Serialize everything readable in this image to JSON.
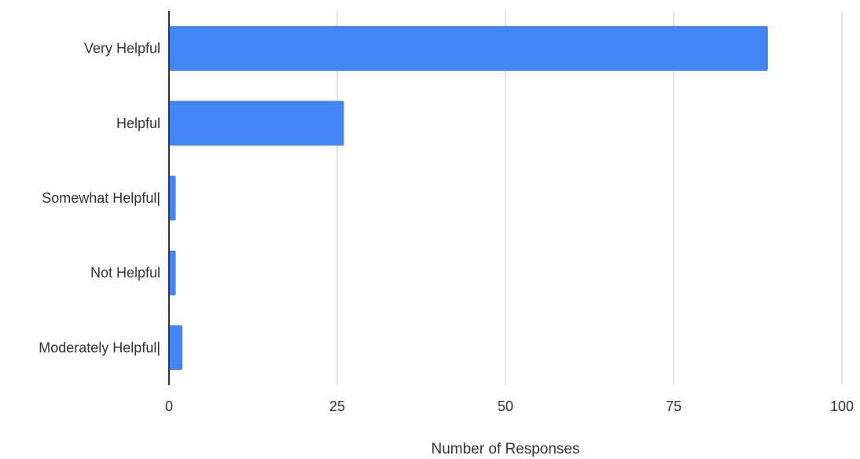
{
  "chart_data": {
    "type": "bar",
    "orientation": "horizontal",
    "categories": [
      "Very Helpful",
      "Helpful",
      "Somewhat Helpful|",
      "Not Helpful",
      "Moderately Helpful|"
    ],
    "values": [
      89,
      26,
      1,
      1,
      2
    ],
    "xlabel": "Number of Responses",
    "ylabel": "",
    "xlim": [
      0,
      100
    ],
    "x_ticks": [
      0,
      25,
      50,
      75,
      100
    ],
    "x_tick_labels": [
      "0",
      "25",
      "50",
      "75",
      "100"
    ],
    "grid": true,
    "legend": "none",
    "bar_color": "#4285f4",
    "grid_color": "#d9d9d9",
    "axis_color": "#333333"
  }
}
